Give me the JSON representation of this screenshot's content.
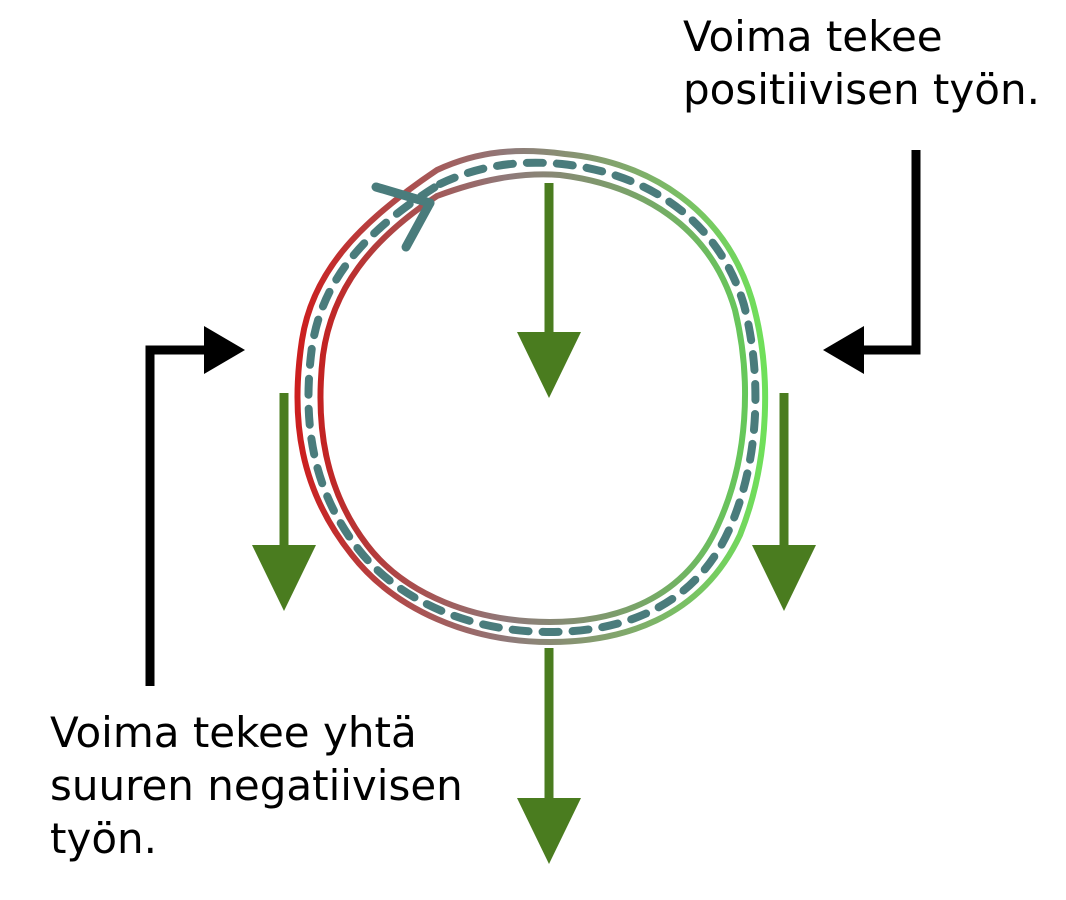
{
  "labels": {
    "positive_work": [
      "Voima tekee",
      "positiivisen työn."
    ],
    "negative_work": [
      "Voima tekee yhtä",
      "suuren negatiivisen",
      "työn."
    ]
  },
  "colors": {
    "force_arrow": "#4a7c1f",
    "path_dashes": "#4a7c7c",
    "negative_side": "#cc1f1f",
    "positive_side": "#6fd85a",
    "pointer_arrows": "#000000"
  }
}
